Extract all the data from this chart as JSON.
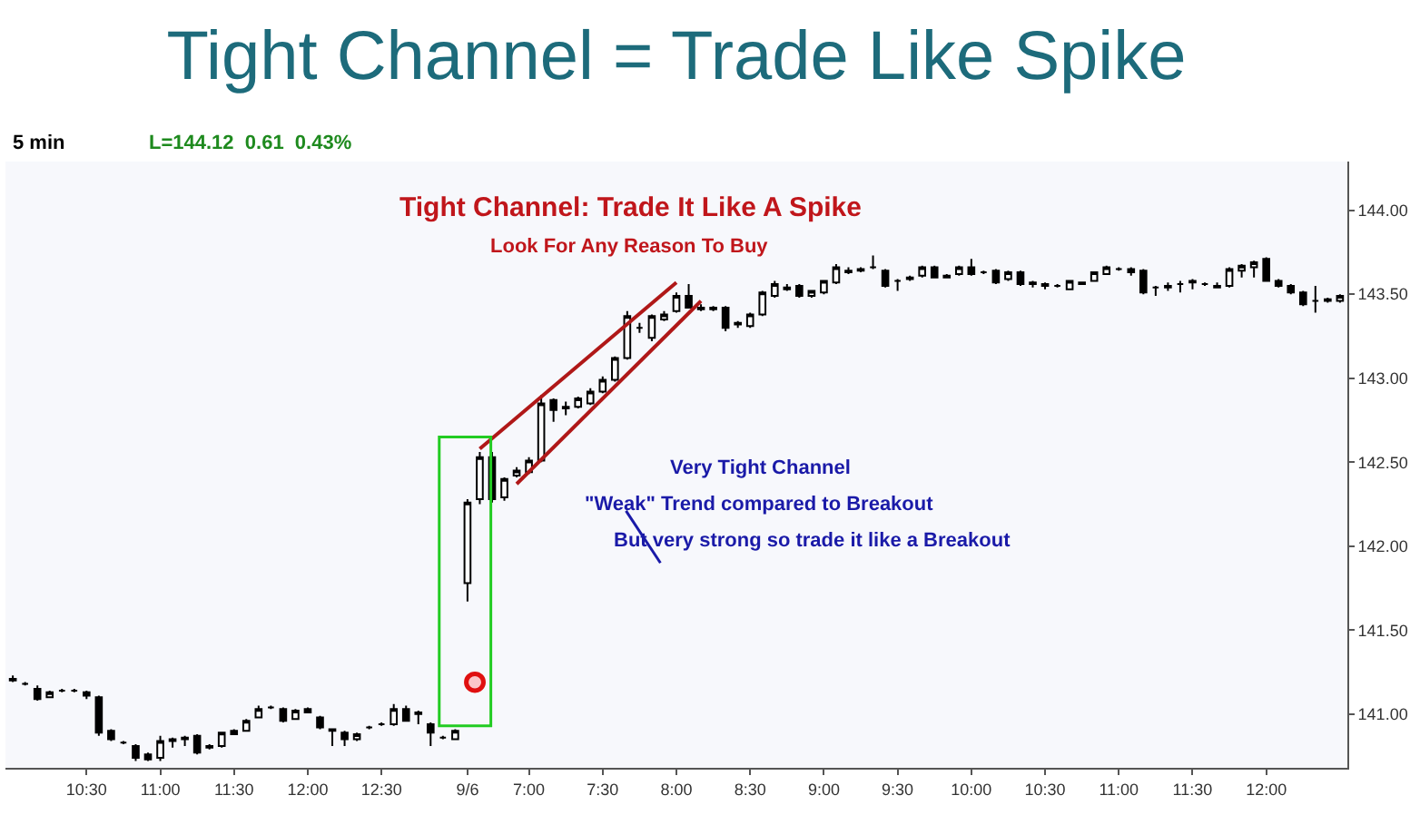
{
  "chart_data": {
    "type": "candlestick",
    "title": "Tight Channel = Trade Like Spike",
    "annotations": [
      "5 min",
      "L=144.12  0.61  0.43%",
      "Tight Channel: Trade It Like A Spike",
      "Look For Any Reason To Buy",
      "Very Tight Channel",
      "\"Weak\" Trend compared to Breakout",
      "But very strong so trade it like a Breakout"
    ],
    "categories": [
      null,
      null,
      null,
      null,
      null,
      null,
      "10:30",
      null,
      null,
      null,
      null,
      null,
      "11:00",
      null,
      null,
      null,
      null,
      null,
      "11:30",
      null,
      null,
      null,
      null,
      null,
      "12:00",
      null,
      null,
      null,
      null,
      null,
      "12:30",
      null,
      null,
      null,
      null,
      null,
      null,
      "9/6",
      null,
      null,
      null,
      null,
      "7:00",
      null,
      null,
      null,
      null,
      null,
      "7:30",
      null,
      null,
      null,
      null,
      null,
      "8:00",
      null,
      null,
      null,
      null,
      null,
      "8:30",
      null,
      null,
      null,
      null,
      null,
      "9:00",
      null,
      null,
      null,
      null,
      null,
      "9:30",
      null,
      null,
      null,
      null,
      null,
      "10:00",
      null,
      null,
      null,
      null,
      null,
      "10:30",
      null,
      null,
      null,
      null,
      null,
      "11:00",
      null,
      null,
      null,
      null,
      null,
      "11:30",
      null,
      null,
      null,
      null,
      null,
      "12:00",
      null,
      null,
      null,
      null,
      null,
      null
    ],
    "ohlc": [
      [
        141.21,
        141.23,
        141.19,
        141.2
      ],
      [
        141.18,
        141.19,
        141.17,
        141.18
      ],
      [
        141.15,
        141.17,
        141.08,
        141.09
      ],
      [
        141.1,
        141.14,
        141.1,
        141.13
      ],
      [
        141.14,
        141.15,
        141.13,
        141.14
      ],
      [
        141.14,
        141.15,
        141.13,
        141.14
      ],
      [
        141.13,
        141.14,
        141.09,
        141.11
      ],
      [
        141.1,
        141.11,
        140.87,
        140.89
      ],
      [
        140.9,
        140.91,
        140.84,
        140.85
      ],
      [
        140.83,
        140.84,
        140.82,
        140.83
      ],
      [
        140.81,
        140.82,
        140.72,
        140.74
      ],
      [
        140.76,
        140.77,
        140.72,
        140.73
      ],
      [
        140.74,
        140.87,
        140.72,
        140.84
      ],
      [
        140.84,
        140.86,
        140.8,
        140.85
      ],
      [
        140.85,
        140.87,
        140.81,
        140.86
      ],
      [
        140.87,
        140.88,
        140.76,
        140.77
      ],
      [
        140.8,
        140.82,
        140.79,
        140.81
      ],
      [
        140.81,
        140.89,
        140.8,
        140.89
      ],
      [
        140.88,
        140.91,
        140.88,
        140.9
      ],
      [
        140.9,
        140.97,
        140.9,
        140.96
      ],
      [
        140.98,
        141.05,
        140.98,
        141.03
      ],
      [
        141.04,
        141.05,
        141.03,
        141.04
      ],
      [
        141.03,
        141.04,
        140.95,
        140.96
      ],
      [
        140.97,
        141.03,
        140.97,
        141.02
      ],
      [
        141.03,
        141.04,
        141.01,
        141.01
      ],
      [
        140.98,
        140.99,
        140.91,
        140.92
      ],
      [
        140.91,
        140.91,
        140.81,
        140.9
      ],
      [
        140.89,
        140.9,
        140.81,
        140.85
      ],
      [
        140.85,
        140.89,
        140.84,
        140.88
      ],
      [
        140.92,
        140.93,
        140.91,
        140.92
      ],
      [
        140.94,
        140.95,
        140.93,
        140.94
      ],
      [
        140.94,
        141.06,
        140.93,
        141.03
      ],
      [
        141.03,
        141.05,
        140.96,
        140.96
      ],
      [
        141.01,
        141.02,
        140.94,
        141.0
      ],
      [
        140.94,
        140.95,
        140.81,
        140.89
      ],
      [
        140.86,
        140.87,
        140.85,
        140.86
      ],
      [
        140.85,
        140.91,
        140.85,
        140.9
      ],
      [
        141.78,
        142.28,
        141.67,
        142.26
      ],
      [
        142.28,
        142.56,
        142.25,
        142.53
      ],
      [
        142.53,
        142.56,
        142.26,
        142.28
      ],
      [
        142.29,
        142.41,
        142.27,
        142.4
      ],
      [
        142.42,
        142.47,
        142.41,
        142.45
      ],
      [
        142.44,
        142.53,
        142.43,
        142.51
      ],
      [
        142.51,
        142.9,
        142.5,
        142.85
      ],
      [
        142.87,
        142.88,
        142.74,
        142.81
      ],
      [
        142.82,
        142.86,
        142.78,
        142.83
      ],
      [
        142.83,
        142.89,
        142.82,
        142.88
      ],
      [
        142.85,
        142.94,
        142.84,
        142.92
      ],
      [
        142.92,
        143.01,
        142.91,
        142.99
      ],
      [
        142.99,
        143.13,
        142.98,
        143.12
      ],
      [
        143.12,
        143.4,
        143.11,
        143.37
      ],
      [
        143.3,
        143.33,
        143.27,
        143.3
      ],
      [
        143.24,
        143.38,
        143.22,
        143.37
      ],
      [
        143.35,
        143.4,
        143.34,
        143.38
      ],
      [
        143.4,
        143.51,
        143.39,
        143.49
      ],
      [
        143.49,
        143.56,
        143.42,
        143.42
      ],
      [
        143.42,
        143.44,
        143.4,
        143.41
      ],
      [
        143.42,
        143.43,
        143.4,
        143.41
      ],
      [
        143.42,
        143.43,
        143.28,
        143.3
      ],
      [
        143.32,
        143.34,
        143.3,
        143.33
      ],
      [
        143.31,
        143.39,
        143.3,
        143.38
      ],
      [
        143.38,
        143.52,
        143.37,
        143.51
      ],
      [
        143.49,
        143.58,
        143.48,
        143.56
      ],
      [
        143.54,
        143.56,
        143.52,
        143.53
      ],
      [
        143.55,
        143.56,
        143.48,
        143.49
      ],
      [
        143.49,
        143.52,
        143.48,
        143.52
      ],
      [
        143.51,
        143.58,
        143.5,
        143.58
      ],
      [
        143.57,
        143.68,
        143.56,
        143.66
      ],
      [
        143.64,
        143.66,
        143.62,
        143.63
      ],
      [
        143.65,
        143.66,
        143.63,
        143.64
      ],
      [
        143.66,
        143.73,
        143.65,
        143.66
      ],
      [
        143.64,
        143.65,
        143.54,
        143.55
      ],
      [
        143.58,
        143.59,
        143.52,
        143.58
      ],
      [
        143.59,
        143.61,
        143.58,
        143.6
      ],
      [
        143.61,
        143.67,
        143.6,
        143.66
      ],
      [
        143.66,
        143.67,
        143.6,
        143.6
      ],
      [
        143.6,
        143.62,
        143.6,
        143.61
      ],
      [
        143.62,
        143.67,
        143.61,
        143.66
      ],
      [
        143.66,
        143.71,
        143.61,
        143.62
      ],
      [
        143.63,
        143.64,
        143.62,
        143.63
      ],
      [
        143.64,
        143.65,
        143.56,
        143.57
      ],
      [
        143.59,
        143.64,
        143.58,
        143.63
      ],
      [
        143.63,
        143.64,
        143.55,
        143.56
      ],
      [
        143.57,
        143.58,
        143.54,
        143.56
      ],
      [
        143.56,
        143.57,
        143.53,
        143.55
      ],
      [
        143.55,
        143.56,
        143.54,
        143.55
      ],
      [
        143.53,
        143.58,
        143.53,
        143.58
      ],
      [
        143.56,
        143.57,
        143.56,
        143.57
      ],
      [
        143.58,
        143.63,
        143.58,
        143.63
      ],
      [
        143.62,
        143.67,
        143.62,
        143.66
      ],
      [
        143.65,
        143.66,
        143.64,
        143.65
      ],
      [
        143.65,
        143.66,
        143.61,
        143.63
      ],
      [
        143.64,
        143.65,
        143.5,
        143.51
      ],
      [
        143.54,
        143.55,
        143.49,
        143.54
      ],
      [
        143.55,
        143.57,
        143.52,
        143.54
      ],
      [
        143.56,
        143.58,
        143.51,
        143.56
      ],
      [
        143.58,
        143.59,
        143.53,
        143.57
      ],
      [
        143.56,
        143.57,
        143.55,
        143.56
      ],
      [
        143.55,
        143.57,
        143.54,
        143.54
      ],
      [
        143.55,
        143.66,
        143.54,
        143.65
      ],
      [
        143.64,
        143.68,
        143.6,
        143.67
      ],
      [
        143.66,
        143.7,
        143.6,
        143.69
      ],
      [
        143.71,
        143.72,
        143.58,
        143.58
      ],
      [
        143.58,
        143.59,
        143.54,
        143.55
      ],
      [
        143.55,
        143.56,
        143.5,
        143.51
      ],
      [
        143.51,
        143.52,
        143.43,
        143.44
      ],
      [
        143.46,
        143.55,
        143.39,
        143.46
      ],
      [
        143.46,
        143.48,
        143.45,
        143.47
      ],
      [
        143.46,
        143.5,
        143.45,
        143.49
      ]
    ],
    "series": [
      {
        "type": "line",
        "color": "#b01818",
        "values": [
          null,
          null,
          null,
          null,
          null,
          null,
          null,
          null,
          null,
          null,
          null,
          null,
          null,
          null,
          null,
          null,
          null,
          null,
          null,
          null,
          null,
          null,
          null,
          null,
          null,
          null,
          null,
          null,
          null,
          null,
          null,
          null,
          null,
          null,
          null,
          null,
          null,
          null,
          142.58,
          null,
          null,
          null,
          null,
          null,
          null,
          null,
          null,
          null,
          null,
          null,
          null,
          null,
          null,
          null,
          143.57,
          null,
          null,
          null,
          null,
          null,
          null,
          null,
          null,
          null,
          null,
          null,
          null,
          null,
          null,
          null,
          null,
          null,
          null,
          null,
          null,
          null,
          null,
          null,
          null,
          null,
          null,
          null,
          null,
          null,
          null,
          null,
          null,
          null,
          null,
          null,
          null,
          null,
          null,
          null,
          null,
          null,
          null,
          null,
          null,
          null,
          null,
          null,
          null,
          null,
          null,
          null,
          null,
          null,
          null
        ]
      },
      {
        "type": "line",
        "color": "#b01818",
        "values": [
          null,
          null,
          null,
          null,
          null,
          null,
          null,
          null,
          null,
          null,
          null,
          null,
          null,
          null,
          null,
          null,
          null,
          null,
          null,
          null,
          null,
          null,
          null,
          null,
          null,
          null,
          null,
          null,
          null,
          null,
          null,
          null,
          null,
          null,
          null,
          null,
          null,
          null,
          null,
          null,
          null,
          142.37,
          null,
          null,
          null,
          null,
          null,
          null,
          null,
          null,
          null,
          null,
          null,
          null,
          null,
          null,
          143.46,
          null,
          null,
          null,
          null,
          null,
          null,
          null,
          null,
          null,
          null,
          null,
          null,
          null,
          null,
          null,
          null,
          null,
          null,
          null,
          null,
          null,
          null,
          null,
          null,
          null,
          null,
          null,
          null,
          null,
          null,
          null,
          null,
          null,
          null,
          null,
          null,
          null,
          null,
          null,
          null,
          null,
          null,
          null,
          null,
          null,
          null,
          null,
          null,
          null,
          null,
          null,
          null
        ]
      }
    ],
    "ylim": [
      140.68,
      144.29
    ],
    "yticks": [
      {
        "value": 141,
        "label": "141.00"
      },
      {
        "value": 141.5,
        "label": "141.50"
      },
      {
        "value": 142,
        "label": "142.00"
      },
      {
        "value": 142.5,
        "label": "142.50"
      },
      {
        "value": 143,
        "label": "143.00"
      },
      {
        "value": 143.5,
        "label": "143.50"
      },
      {
        "value": 144,
        "label": "144.00"
      }
    ],
    "grid": false,
    "line_style": "solid",
    "marker": "none"
  }
}
